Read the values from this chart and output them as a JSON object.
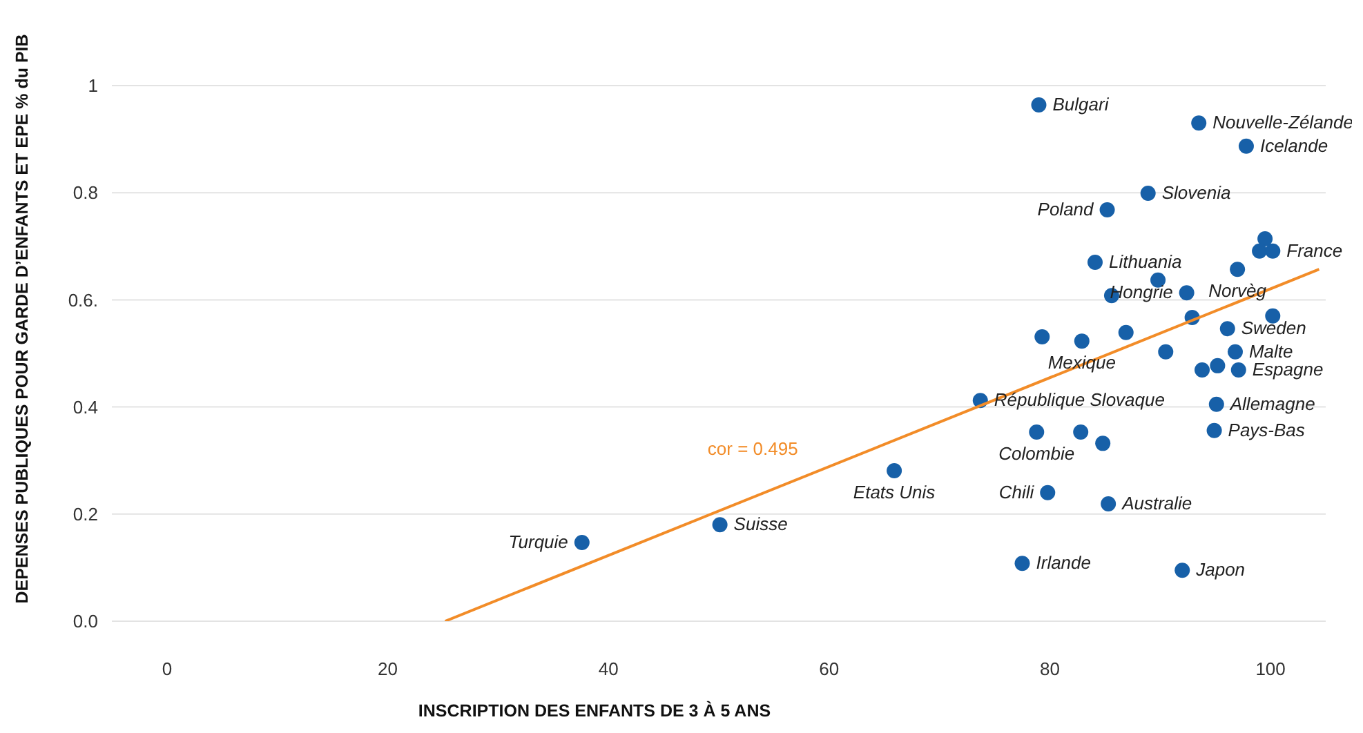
{
  "chart_data": {
    "type": "scatter",
    "xlabel": "INSCRIPTION DES ENFANTS DE 3 À 5 ANS",
    "ylabel": "DEPENSES PUBLIQUES POUR GARDE D’ENFANTS ET EPE % du PIB",
    "xlim": [
      -5,
      105
    ],
    "xticks": [
      0,
      20,
      40,
      60,
      80,
      100
    ],
    "ylim": [
      0,
      1
    ],
    "yticks": [
      {
        "value": 0,
        "label": "0.0"
      },
      0.2,
      0.4,
      {
        "value": 0.6,
        "label": "0.6."
      },
      0.8,
      1
    ],
    "grid": "y",
    "series": [
      {
        "marker": "circle",
        "color": "#1760a8",
        "x": [
          79.0,
          93.5,
          97.8,
          88.9,
          85.2,
          84.1,
          99.5,
          99.0,
          100.2,
          97.0,
          89.8,
          85.6,
          92.4,
          92.9,
          100.2,
          96.1,
          79.3,
          82.9,
          86.9,
          90.5,
          96.8,
          93.8,
          95.2,
          97.1,
          73.7,
          95.1,
          78.8,
          82.8,
          84.8,
          94.9,
          65.9,
          79.8,
          85.3,
          77.5,
          92.0,
          50.1,
          37.6
        ],
        "values": [
          0.964,
          0.93,
          0.887,
          0.799,
          0.768,
          0.67,
          0.714,
          0.691,
          0.691,
          0.657,
          0.637,
          0.608,
          0.613,
          0.567,
          0.57,
          0.546,
          0.531,
          0.523,
          0.539,
          0.503,
          0.503,
          0.469,
          0.477,
          0.469,
          0.412,
          0.405,
          0.353,
          0.353,
          0.332,
          0.356,
          0.281,
          0.24,
          0.219,
          0.108,
          0.095,
          0.18,
          0.147
        ]
      },
      {
        "type": "line",
        "marker": "none",
        "color": "#f28c28",
        "x": [
          25.2,
          104.4
        ],
        "values": [
          0,
          0.657
        ]
      }
    ],
    "annotations": [
      {
        "text": "Bulgari",
        "x": 79.0,
        "y": 0.964
      },
      {
        "text": "Nouvelle-Zélande",
        "x": 93.5,
        "y": 0.93
      },
      {
        "text": "Icelande",
        "x": 97.8,
        "y": 0.887
      },
      {
        "text": "Slovenia",
        "x": 88.9,
        "y": 0.799
      },
      {
        "text": "Poland",
        "x": 85.2,
        "y": 0.768
      },
      {
        "text": "Lithuania",
        "x": 84.1,
        "y": 0.67
      },
      {
        "text": "France",
        "x": 100.2,
        "y": 0.691
      },
      {
        "text": "Norvèg",
        "x": 97.0,
        "y": 0.657
      },
      {
        "text": "Hongrie",
        "x": 92.4,
        "y": 0.613
      },
      {
        "text": "Sweden",
        "x": 96.1,
        "y": 0.546
      },
      {
        "text": "Mexique",
        "x": 82.9,
        "y": 0.523
      },
      {
        "text": "Malte",
        "x": 96.8,
        "y": 0.503
      },
      {
        "text": "Espagne",
        "x": 97.1,
        "y": 0.469
      },
      {
        "text": "République Slovaque",
        "x": 73.7,
        "y": 0.412
      },
      {
        "text": "Allemagne",
        "x": 95.1,
        "y": 0.405
      },
      {
        "text": "Colombie",
        "x": 78.8,
        "y": 0.353
      },
      {
        "text": "Pays-Bas",
        "x": 94.9,
        "y": 0.356
      },
      {
        "text": "Etats Unis",
        "x": 65.9,
        "y": 0.281
      },
      {
        "text": "Chili",
        "x": 79.8,
        "y": 0.24
      },
      {
        "text": "Australie",
        "x": 85.3,
        "y": 0.219
      },
      {
        "text": "Irlande",
        "x": 77.5,
        "y": 0.108
      },
      {
        "text": "Japon",
        "x": 92.0,
        "y": 0.095
      },
      {
        "text": "Suisse",
        "x": 50.1,
        "y": 0.18
      },
      {
        "text": "Turquie",
        "x": 37.6,
        "y": 0.147
      },
      "cor = 0.495"
    ]
  }
}
